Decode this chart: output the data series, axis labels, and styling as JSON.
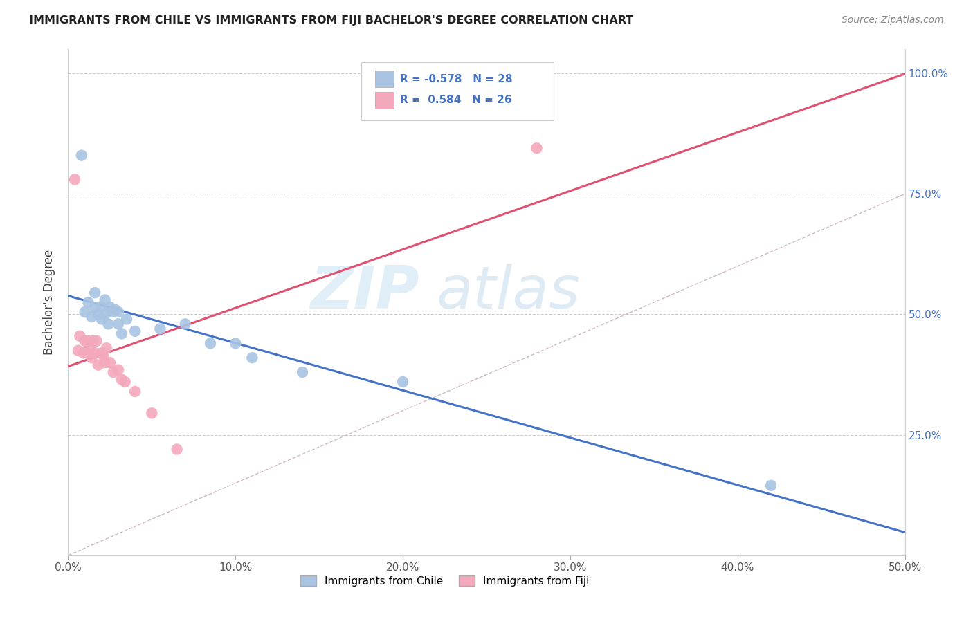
{
  "title": "IMMIGRANTS FROM CHILE VS IMMIGRANTS FROM FIJI BACHELOR'S DEGREE CORRELATION CHART",
  "source": "Source: ZipAtlas.com",
  "ylabel": "Bachelor's Degree",
  "xlim": [
    0.0,
    0.5
  ],
  "ylim": [
    0.0,
    1.05
  ],
  "xtick_labels": [
    "0.0%",
    "10.0%",
    "20.0%",
    "30.0%",
    "40.0%",
    "50.0%"
  ],
  "xtick_vals": [
    0.0,
    0.1,
    0.2,
    0.3,
    0.4,
    0.5
  ],
  "ytick_labels": [
    "25.0%",
    "50.0%",
    "75.0%",
    "100.0%"
  ],
  "ytick_vals": [
    0.25,
    0.5,
    0.75,
    1.0
  ],
  "chile_color": "#a8c4e2",
  "fiji_color": "#f4a8bc",
  "chile_line_color": "#4472c4",
  "fiji_line_color": "#e05070",
  "grid_color": "#cccccc",
  "diag_color": "#d0b8c8",
  "R_chile": -0.578,
  "N_chile": 28,
  "R_fiji": 0.584,
  "N_fiji": 26,
  "tick_color": "#4472c4",
  "chile_x": [
    0.008,
    0.01,
    0.012,
    0.014,
    0.016,
    0.016,
    0.018,
    0.02,
    0.02,
    0.022,
    0.022,
    0.024,
    0.025,
    0.026,
    0.028,
    0.03,
    0.03,
    0.032,
    0.035,
    0.04,
    0.055,
    0.07,
    0.085,
    0.1,
    0.11,
    0.14,
    0.2,
    0.42
  ],
  "chile_y": [
    0.83,
    0.505,
    0.525,
    0.495,
    0.515,
    0.545,
    0.5,
    0.515,
    0.49,
    0.5,
    0.53,
    0.48,
    0.515,
    0.505,
    0.51,
    0.48,
    0.505,
    0.46,
    0.49,
    0.465,
    0.47,
    0.48,
    0.44,
    0.44,
    0.41,
    0.38,
    0.36,
    0.145
  ],
  "fiji_x": [
    0.004,
    0.006,
    0.007,
    0.009,
    0.01,
    0.011,
    0.012,
    0.013,
    0.014,
    0.015,
    0.016,
    0.017,
    0.018,
    0.02,
    0.021,
    0.022,
    0.023,
    0.025,
    0.027,
    0.03,
    0.032,
    0.034,
    0.04,
    0.05,
    0.065,
    0.28
  ],
  "fiji_y": [
    0.78,
    0.425,
    0.455,
    0.42,
    0.445,
    0.42,
    0.445,
    0.43,
    0.41,
    0.445,
    0.42,
    0.445,
    0.395,
    0.42,
    0.415,
    0.4,
    0.43,
    0.4,
    0.38,
    0.385,
    0.365,
    0.36,
    0.34,
    0.295,
    0.22,
    0.845
  ]
}
